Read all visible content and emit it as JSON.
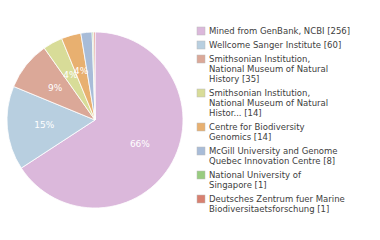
{
  "chart_data": {
    "type": "pie",
    "categories": [
      "Mined from GenBank, NCBI [256]",
      "Wellcome Sanger Institute [60]",
      "Smithsonian Institution,\nNational Museum of Natural\nHistory [35]",
      "Smithsonian Institution,\nNational Museum of Natural\nHistor... [14]",
      "Centre for Biodiversity\nGenomics [14]",
      "McGill University and Genome\nQuebec Innovation Centre [8]",
      "National University of\nSingapore [1]",
      "Deutsches Zentrum fuer Marine\nBiodiversitaetsforschung [1]"
    ],
    "values": [
      65.81,
      15.42,
      9.0,
      3.6,
      3.6,
      2.06,
      0.26,
      0.26
    ],
    "value_labels": [
      "66%",
      "15%",
      "9%",
      "4%",
      "4%",
      null,
      null,
      null
    ],
    "data_labels": true,
    "colors": [
      "#dbb8db",
      "#b8cfe0",
      "#dba898",
      "#d8dc98",
      "#e8b070",
      "#a8bcd8",
      "#98cc80",
      "#d88070"
    ],
    "legend": "right"
  }
}
